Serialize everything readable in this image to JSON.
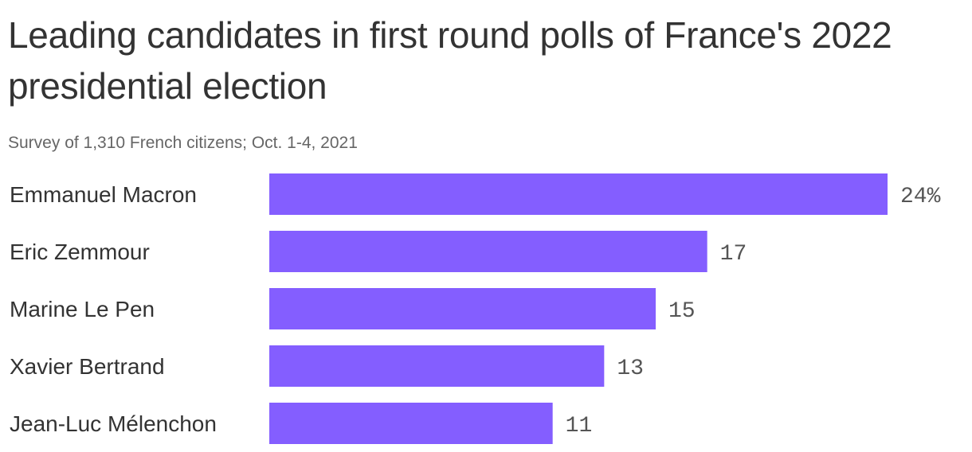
{
  "chart_data": {
    "type": "bar",
    "orientation": "horizontal",
    "title": "Leading candidates in first round polls of France's 2022 presidential election",
    "subtitle": "Survey of 1,310 French citizens; Oct. 1-4, 2021",
    "categories": [
      "Emmanuel Macron",
      "Eric Zemmour",
      "Marine Le Pen",
      "Xavier Bertrand",
      "Jean-Luc Mélenchon"
    ],
    "values": [
      24,
      17,
      15,
      13,
      11
    ],
    "value_labels": [
      "24%",
      "17",
      "15",
      "13",
      "11"
    ],
    "xlim": [
      0,
      24
    ],
    "grid": false,
    "legend": "none",
    "bar_color": "#845eff"
  }
}
